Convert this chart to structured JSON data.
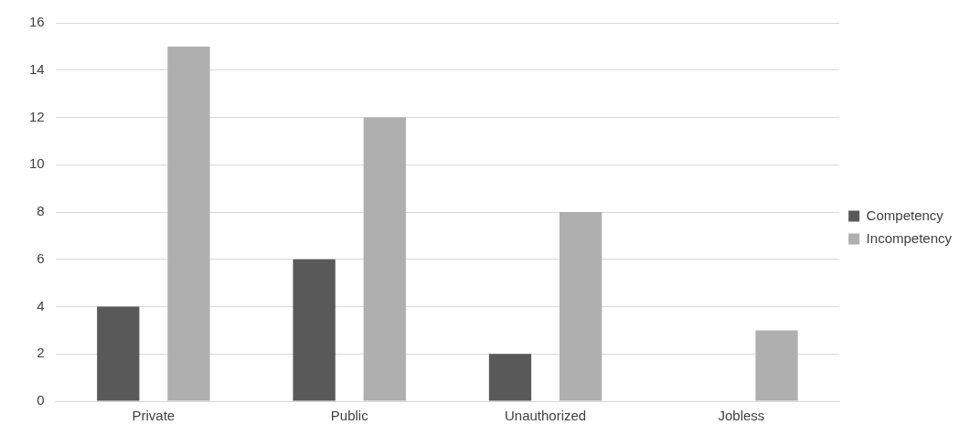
{
  "chart_data": {
    "type": "bar",
    "categories": [
      "Private",
      "Public",
      "Unauthorized",
      "Jobless"
    ],
    "series": [
      {
        "name": "Competency",
        "color": "#595959",
        "values": [
          4,
          6,
          2,
          0
        ]
      },
      {
        "name": "Incompetency",
        "color": "#afafaf",
        "values": [
          15,
          12,
          8,
          3
        ]
      }
    ],
    "ylim": [
      0,
      16
    ],
    "yticks": [
      0,
      2,
      4,
      6,
      8,
      10,
      12,
      14,
      16
    ],
    "grid": "y",
    "legend": "right"
  }
}
